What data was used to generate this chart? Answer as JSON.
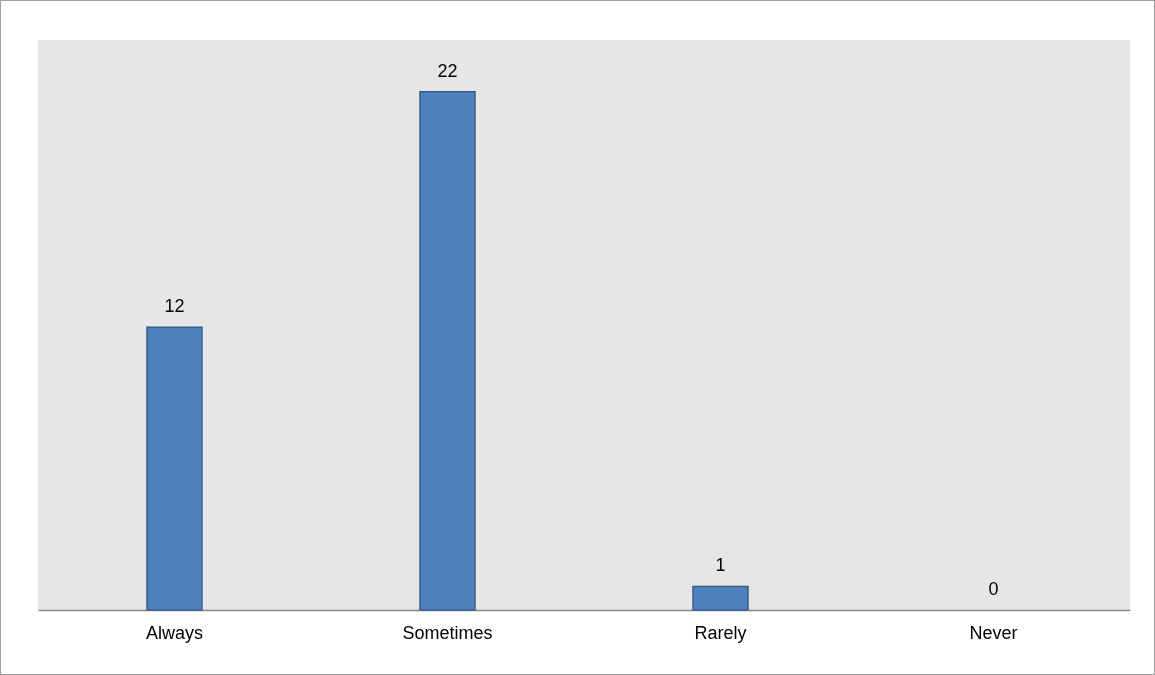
{
  "chart_data": {
    "type": "bar",
    "categories": [
      "Always",
      "Sometimes",
      "Rarely",
      "Never"
    ],
    "values": [
      12,
      22,
      1,
      0
    ],
    "color": "#4f81bd",
    "data_labels": true,
    "grid": false
  }
}
